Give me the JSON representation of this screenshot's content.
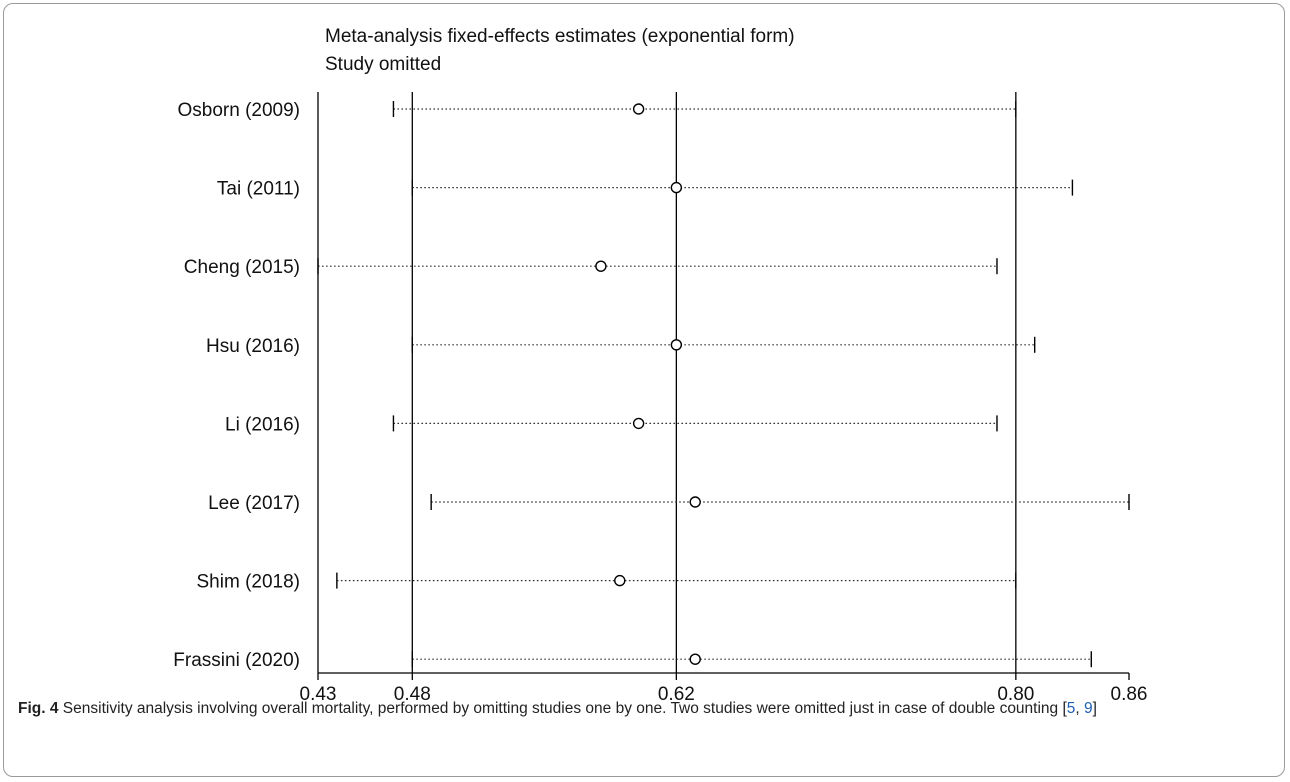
{
  "chart_data": {
    "type": "forest-sensitivity",
    "title": "Meta-analysis fixed-effects estimates (exponential form)",
    "subtitle": "Study omitted",
    "xlim": [
      0.43,
      0.86
    ],
    "xticks": [
      "0.43",
      "0.48",
      "0.62",
      "0.80",
      "0.86"
    ],
    "reference_lines": [
      0.48,
      0.62,
      0.8
    ],
    "studies": [
      {
        "label": "Osborn (2009)",
        "estimate": 0.6,
        "lower": 0.47,
        "upper": 0.8
      },
      {
        "label": "Tai (2011)",
        "estimate": 0.62,
        "lower": 0.48,
        "upper": 0.83
      },
      {
        "label": "Cheng (2015)",
        "estimate": 0.58,
        "lower": 0.43,
        "upper": 0.79
      },
      {
        "label": "Hsu (2016)",
        "estimate": 0.62,
        "lower": 0.48,
        "upper": 0.81
      },
      {
        "label": "Li (2016)",
        "estimate": 0.6,
        "lower": 0.47,
        "upper": 0.79
      },
      {
        "label": "Lee (2017)",
        "estimate": 0.63,
        "lower": 0.49,
        "upper": 0.86
      },
      {
        "label": "Shim (2018)",
        "estimate": 0.59,
        "lower": 0.44,
        "upper": 0.8
      },
      {
        "label": "Frassini (2020)",
        "estimate": 0.63,
        "lower": 0.48,
        "upper": 0.84
      }
    ]
  },
  "caption": {
    "label": "Fig. 4",
    "text": " Sensitivity analysis involving overall mortality, performed by omitting studies one by one. Two studies were omitted just in case of double counting [",
    "ref1": "5",
    "sep": ", ",
    "ref2": "9",
    "end": "]"
  }
}
